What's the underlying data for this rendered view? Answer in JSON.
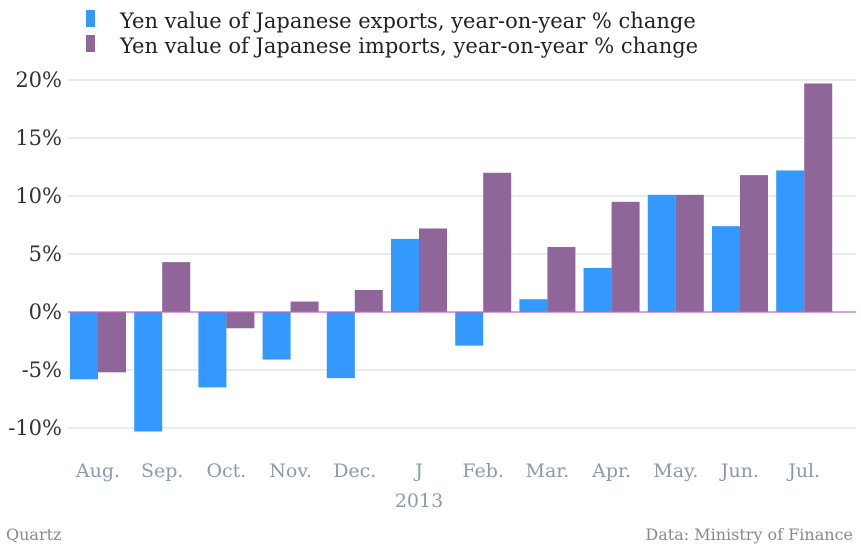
{
  "chart_data": {
    "type": "bar",
    "categories": [
      "Aug.",
      "Sep.",
      "Oct.",
      "Nov.",
      "Dec.",
      "J",
      "Feb.",
      "Mar.",
      "Apr.",
      "May.",
      "Jun.",
      "Jul."
    ],
    "year_label": "2013",
    "series": [
      {
        "name": "Yen value of Japanese exports, year-on-year % change",
        "color": "#3399ff",
        "values": [
          -5.8,
          -10.3,
          -6.5,
          -4.1,
          -5.7,
          6.3,
          -2.9,
          1.1,
          3.8,
          10.1,
          7.4,
          12.2
        ]
      },
      {
        "name": "Yen value of Japanese imports, year-on-year % change",
        "color": "#8f6699",
        "values": [
          -5.2,
          4.3,
          -1.4,
          0.9,
          1.9,
          7.2,
          12.0,
          5.6,
          9.5,
          10.1,
          11.8,
          19.7
        ]
      }
    ],
    "yticks": [
      "20%",
      "15%",
      "10%",
      "5%",
      "0%",
      "-5%",
      "-10%"
    ],
    "ytick_values": [
      20,
      15,
      10,
      5,
      0,
      -5,
      -10
    ],
    "ylim": [
      -10,
      20
    ],
    "grid": true,
    "zero_line_color": "#c066c0"
  },
  "footer": {
    "source_left": "Quartz",
    "source_right": "Data: Ministry of Finance"
  }
}
